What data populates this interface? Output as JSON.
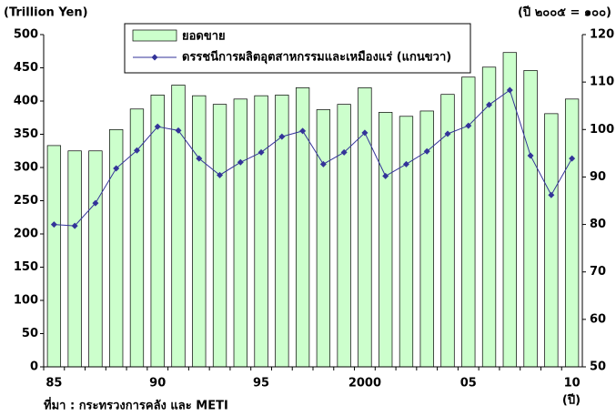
{
  "chart_data": {
    "type": "bar",
    "y_label": "(Trillion Yen)",
    "y2_label": "(ปี ๒๐๐๕ = ๑๐๐)",
    "x_label": "(ปี)",
    "source": "ที่มา : กระทรวงการคลัง และ METI",
    "categories": [
      "85",
      null,
      null,
      null,
      null,
      "90",
      null,
      null,
      null,
      null,
      "95",
      null,
      null,
      null,
      null,
      "2000",
      null,
      null,
      null,
      null,
      "05",
      null,
      null,
      null,
      null,
      "10"
    ],
    "series": [
      {
        "name": "ยอดขาย",
        "type": "bar",
        "color": "#ccffcc",
        "values": [
          333,
          325,
          325,
          357,
          388,
          409,
          424,
          408,
          395,
          403,
          408,
          409,
          420,
          387,
          395,
          420,
          383,
          377,
          385,
          410,
          436,
          451,
          473,
          446,
          381,
          403
        ]
      },
      {
        "name": "ดรรชนีการผลิตอุตสาหกรรมและเหมืองแร่ (แกนขวา)",
        "type": "line",
        "axis": "y2",
        "color": "#333399",
        "values": [
          80,
          79.7,
          84.5,
          91.8,
          95.6,
          100.6,
          99.8,
          93.9,
          90.4,
          93.1,
          95.2,
          98.5,
          99.7,
          92.7,
          95.2,
          99.3,
          90.2,
          92.7,
          95.4,
          99.1,
          100.8,
          105.2,
          108.3,
          94.5,
          86.2,
          93.9
        ]
      }
    ],
    "ylim": [
      0,
      500
    ],
    "yticks": [
      0,
      50,
      100,
      150,
      200,
      250,
      300,
      350,
      400,
      450,
      500
    ],
    "y2lim": [
      50,
      120
    ],
    "y2ticks": [
      50,
      60,
      70,
      80,
      90,
      100,
      110,
      120
    ]
  }
}
